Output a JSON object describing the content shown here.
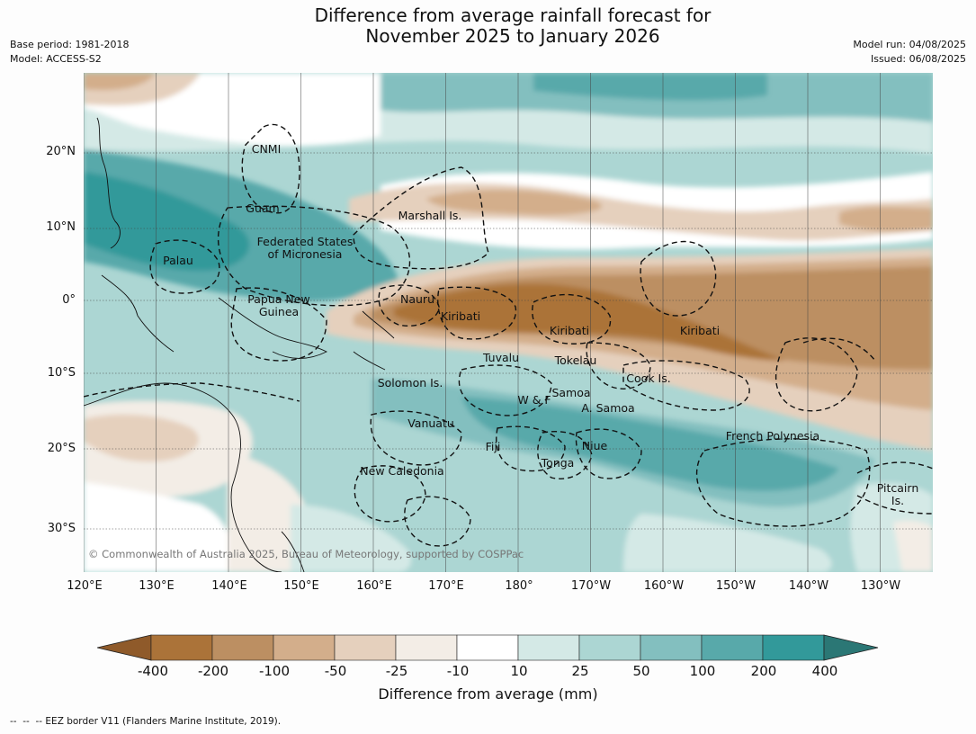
{
  "title": {
    "line1": "Difference from average rainfall forecast for",
    "line2": "November 2025 to January 2026"
  },
  "meta_left": {
    "base_period": "Base period: 1981-2018",
    "model": "Model: ACCESS-S2"
  },
  "meta_right": {
    "model_run": "Model run: 04/08/2025",
    "issued": "Issued: 06/08/2025"
  },
  "map": {
    "lat_labels": [
      "20°N",
      "10°N",
      "0°",
      "10°S",
      "20°S",
      "30°S"
    ],
    "lon_labels": [
      "120°E",
      "130°E",
      "140°E",
      "150°E",
      "160°E",
      "170°E",
      "180°",
      "170°W",
      "160°W",
      "150°W",
      "140°W",
      "130°W"
    ],
    "places": [
      "CNMI",
      "Guam",
      "Marshall Is.",
      "Federated States",
      "of Micronesia",
      "Palau",
      "Nauru",
      "Papua New",
      "Guinea",
      "Kiribati",
      "Kiribati",
      "Kiribati",
      "Tuvalu",
      "Tokelau",
      "Solomon Is.",
      "Cook Is.",
      "W & F",
      "Samoa",
      "A. Samoa",
      "Vanuatu",
      "Fiji",
      "Niue",
      "French Polynesia",
      "Tonga",
      "New Caledonia",
      "Pitcairn",
      "Is."
    ],
    "copyright": "© Commonwealth of Australia 2025, Bureau of Meteorology, supported by COSPPac"
  },
  "colorbar": {
    "ticks": [
      "-400",
      "-200",
      "-100",
      "-50",
      "-25",
      "-10",
      "10",
      "25",
      "50",
      "100",
      "200",
      "400"
    ],
    "colors": [
      "#8f5a2a",
      "#ab7339",
      "#bc8f62",
      "#d3ae8b",
      "#e5d0bd",
      "#f3ede6",
      "#ffffff",
      "#d4e9e6",
      "#acd6d3",
      "#83bfbf",
      "#58a9aa",
      "#32999a",
      "#2b7775"
    ],
    "label": "Difference from average (mm)"
  },
  "footnote": "--  --  -- EEZ border V11 (Flanders Marine Institute, 2019)."
}
